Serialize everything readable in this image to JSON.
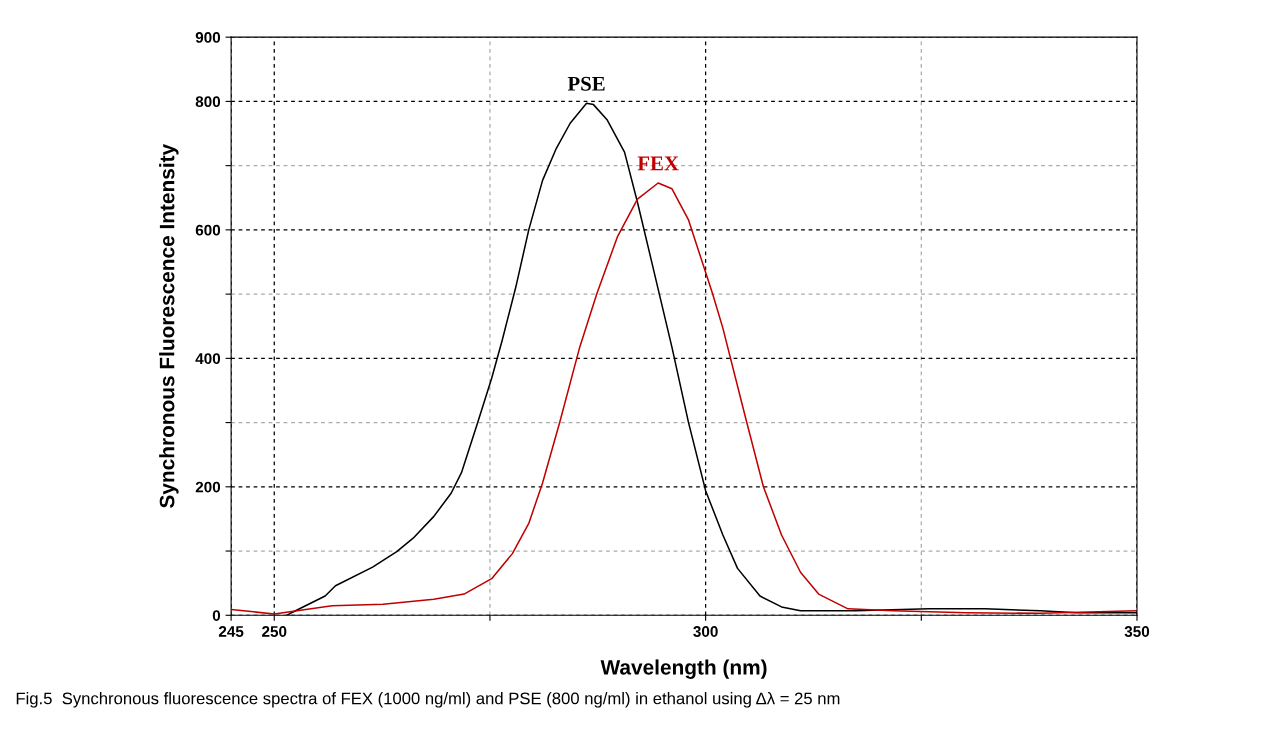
{
  "chart_data": {
    "type": "line",
    "xlabel": "Wavelength (nm)",
    "ylabel": "Synchronous Fluorescence Intensity",
    "xlim": [
      245,
      350
    ],
    "ylim": [
      0,
      900
    ],
    "xticks": [
      245,
      250,
      {
        "value": 275,
        "label": null
      },
      300,
      {
        "value": 325,
        "label": null
      },
      350
    ],
    "yticks": [
      0,
      {
        "value": 100,
        "label": null
      },
      200,
      {
        "value": 300,
        "label": null
      },
      400,
      {
        "value": 500,
        "label": null
      },
      600,
      {
        "value": 700,
        "label": null
      },
      800,
      900
    ],
    "grid": true,
    "legend": false,
    "marker": "none",
    "line_style": "solid",
    "series": [
      {
        "name": "PSE",
        "color": "#000000",
        "x": [
          251.5,
          252.0,
          255.9,
          257.1,
          261.4,
          264.2,
          266.1,
          268.5,
          270.5,
          271.7,
          273.6,
          275.2,
          276.4,
          278.0,
          279.5,
          281.1,
          282.7,
          284.3,
          286.2,
          287.0,
          288.6,
          290.6,
          292.1,
          293.7,
          296.1,
          298.0,
          300.0,
          302.0,
          303.7,
          306.3,
          308.8,
          311.0,
          317.4,
          325.9,
          332.4,
          338.8,
          343.0,
          350.0
        ],
        "values": [
          0,
          4,
          30,
          46,
          75,
          99,
          120,
          154,
          190,
          222,
          301,
          369,
          427,
          511,
          600,
          677,
          727,
          766,
          797,
          795,
          771,
          721,
          643,
          553,
          417,
          301,
          194,
          125,
          73,
          30,
          13,
          7,
          7,
          10,
          10,
          7,
          4,
          4
        ]
      },
      {
        "name": "FEX",
        "color": "#c00000",
        "x": [
          245.0,
          250.0,
          256.7,
          262.6,
          268.5,
          272.0,
          275.2,
          277.6,
          279.5,
          281.1,
          283.1,
          285.4,
          287.4,
          289.8,
          292.1,
          294.5,
          296.1,
          298.0,
          300.8,
          302.0,
          304.6,
          306.7,
          308.8,
          311.0,
          313.1,
          316.5,
          321.7,
          330.2,
          338.8,
          350.0
        ],
        "values": [
          9,
          2,
          15,
          17,
          25,
          33,
          57,
          96,
          143,
          206,
          301,
          417,
          501,
          590,
          648,
          673,
          664,
          616,
          501,
          447,
          309,
          200,
          125,
          67,
          33,
          10,
          7,
          4,
          3,
          7
        ]
      }
    ],
    "annotations": [
      "Fig.5  Synchronous fluorescence spectra of FEX (1000 ng/ml) and PSE (800 ng/ml) in ethanol using Δλ = 25 nm"
    ]
  }
}
